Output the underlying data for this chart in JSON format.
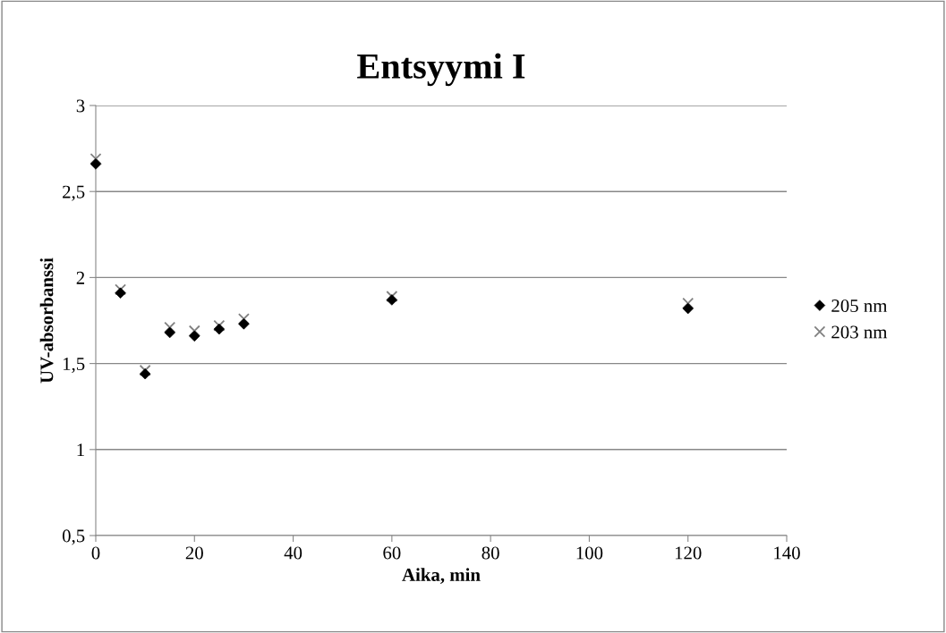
{
  "chart_data": {
    "type": "scatter",
    "title": "Entsyymi I",
    "xlabel": "Aika, min",
    "ylabel": "UV-absorbanssi",
    "x": [
      0,
      5,
      10,
      15,
      20,
      25,
      30,
      60,
      120
    ],
    "series": [
      {
        "name": "205 nm",
        "color": "#000000",
        "marker": "diamond",
        "values": [
          2.66,
          1.91,
          1.44,
          1.68,
          1.66,
          1.7,
          1.73,
          1.87,
          1.82
        ]
      },
      {
        "name": "203 nm",
        "color": "#808080",
        "marker": "cross",
        "values": [
          2.69,
          1.93,
          1.46,
          1.71,
          1.69,
          1.72,
          1.76,
          1.89,
          1.85
        ]
      }
    ],
    "xlim": [
      0,
      140
    ],
    "xticks": [
      0,
      20,
      40,
      60,
      80,
      100,
      120,
      140
    ],
    "ylim": [
      0.5,
      3
    ],
    "yticks": [
      {
        "value": 0.5,
        "label": "0,5"
      },
      1,
      {
        "value": 1.5,
        "label": "1,5"
      },
      2,
      {
        "value": 2.5,
        "label": "2,5"
      },
      3
    ],
    "grid": "y",
    "legend": "right"
  }
}
